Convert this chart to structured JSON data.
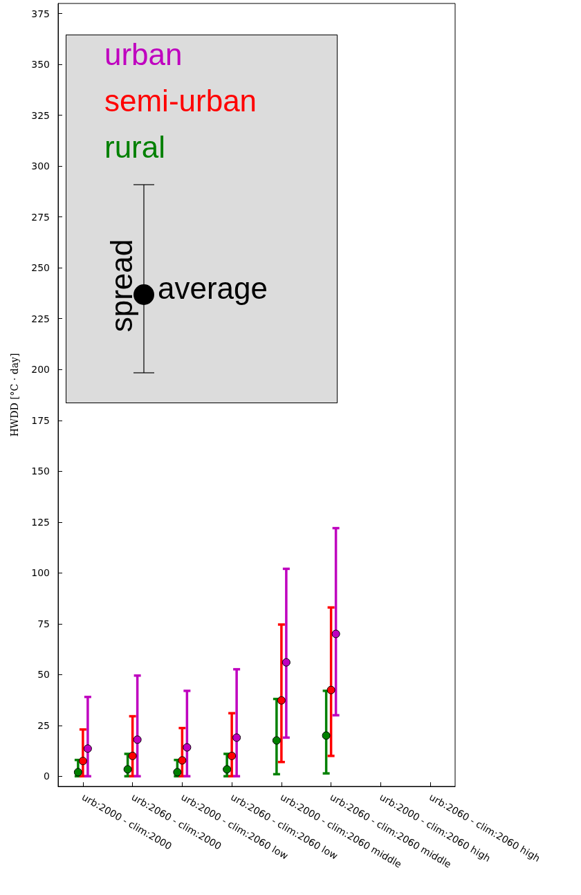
{
  "chart_data": {
    "type": "scatter",
    "ylabel": "HWDD [°C · day]",
    "categories": [
      "urb:2000 - clim:2000",
      "urb:2060 - clim:2000",
      "urb:2000 - clim:2060 low",
      "urb:2060 - clim:2060 low",
      "urb:2000 - clim:2060 middle",
      "urb:2060 - clim:2060 middle",
      "urb:2000 - clim:2060 high",
      "urb:2060 - clim:2060 high"
    ],
    "series": [
      {
        "name": "rural",
        "color": "#008000",
        "values": [
          2,
          3.4,
          2,
          3.4,
          17.6,
          20,
          null,
          null
        ],
        "errors": [
          [
            0,
            8
          ],
          [
            0,
            11
          ],
          [
            0,
            8
          ],
          [
            0,
            11
          ],
          [
            1,
            38
          ],
          [
            1.4,
            42
          ],
          null,
          null
        ]
      },
      {
        "name": "semi-urban",
        "color": "#ff0000",
        "values": [
          7.5,
          10,
          7.8,
          10,
          37.3,
          42.4,
          null,
          null
        ],
        "errors": [
          [
            0,
            23
          ],
          [
            0,
            29.5
          ],
          [
            0,
            23.7
          ],
          [
            0,
            31
          ],
          [
            7,
            74.6
          ],
          [
            10,
            83
          ],
          null,
          null
        ]
      },
      {
        "name": "urban",
        "color": "#bf00bf",
        "values": [
          13.6,
          18,
          14.2,
          19,
          56,
          70,
          null,
          null
        ],
        "errors": [
          [
            0,
            39
          ],
          [
            0,
            49.5
          ],
          [
            0,
            42
          ],
          [
            0,
            52.6
          ],
          [
            19,
            102
          ],
          [
            30,
            122
          ],
          null,
          null
        ]
      }
    ],
    "ylim": [
      -5,
      380
    ],
    "yticks": [
      0,
      25,
      50,
      75,
      100,
      125,
      150,
      175,
      200,
      225,
      250,
      275,
      300,
      325,
      350,
      375
    ],
    "grid": false,
    "marker": "circle",
    "legend": "top left",
    "annotations": [
      "spread",
      "average"
    ]
  }
}
